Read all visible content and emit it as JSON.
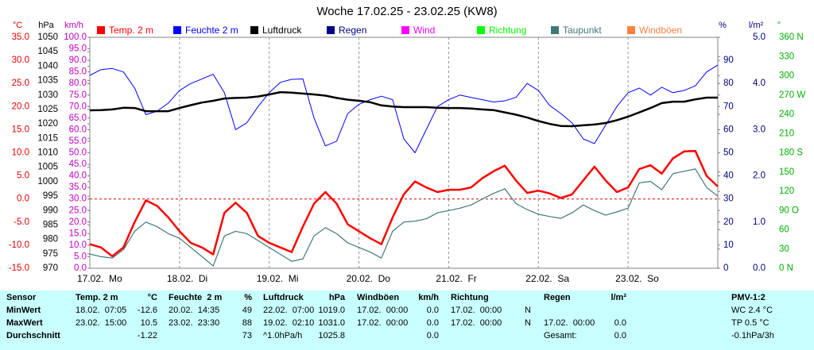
{
  "chart_data": {
    "type": "line",
    "title": "Woche 17.02.25 - 23.02.25 (KW8)",
    "x": [
      0,
      3,
      6,
      9,
      12,
      15,
      18,
      21,
      24,
      27,
      30,
      33,
      36,
      39,
      42,
      45,
      48,
      51,
      54,
      57,
      60,
      63,
      66,
      69,
      72,
      75,
      78,
      81,
      84,
      87,
      90,
      93,
      96,
      99,
      102,
      105,
      108,
      111,
      114,
      117,
      120,
      123,
      126,
      129,
      132,
      135,
      138,
      141,
      144,
      147,
      150,
      153,
      156,
      159,
      162,
      165,
      168
    ],
    "xlim": [
      0,
      168
    ],
    "xticks": [
      {
        "value": 0,
        "label": "17.02.  Mo"
      },
      {
        "value": 24,
        "label": "18.02.  Di"
      },
      {
        "value": 48,
        "label": "19.02.  Mi"
      },
      {
        "value": 72,
        "label": "20.02.  Do"
      },
      {
        "value": 96,
        "label": "21.02.  Fr"
      },
      {
        "value": 120,
        "label": "22.02.  Sa"
      },
      {
        "value": 144,
        "label": "23.02.  So"
      }
    ],
    "grid": true,
    "y_reference": 0,
    "axes": [
      {
        "title": "°C",
        "color": "#e00000",
        "lim": [
          -15,
          35
        ],
        "ticks": [
          {
            "value": 35,
            "label": "35.0"
          },
          {
            "value": 30,
            "label": "30.0"
          },
          {
            "value": 25,
            "label": "25.0"
          },
          {
            "value": 20,
            "label": "20.0"
          },
          {
            "value": 15,
            "label": "15.0"
          },
          {
            "value": 10,
            "label": "10.0"
          },
          {
            "value": 5,
            "label": "5.0"
          },
          {
            "value": 0,
            "label": "0.0"
          },
          {
            "value": -5,
            "label": "-5.0"
          },
          {
            "value": -10,
            "label": "-10.0"
          },
          {
            "value": -15,
            "label": "-15.0"
          }
        ]
      },
      {
        "title": "hPa",
        "color": "#000000",
        "lim": [
          970,
          1050
        ],
        "ticks": [
          1050,
          1045,
          1040,
          1035,
          1030,
          1025,
          1020,
          1015,
          1010,
          1005,
          1000,
          995,
          990,
          985,
          980,
          975,
          970
        ]
      },
      {
        "title": "km/h",
        "color": "#c000c0",
        "lim": [
          0,
          100
        ],
        "ticks": [
          {
            "value": 100,
            "label": "100.0"
          },
          {
            "value": 95,
            "label": "95.0"
          },
          {
            "value": 90,
            "label": "90.0"
          },
          {
            "value": 85,
            "label": "85.0"
          },
          {
            "value": 80,
            "label": "80.0"
          },
          {
            "value": 75,
            "label": "75.0"
          },
          {
            "value": 70,
            "label": "70.0"
          },
          {
            "value": 65,
            "label": "65.0"
          },
          {
            "value": 60,
            "label": "60.0"
          },
          {
            "value": 55,
            "label": "55.0"
          },
          {
            "value": 50,
            "label": "50.0"
          },
          {
            "value": 45,
            "label": "45.0"
          },
          {
            "value": 40,
            "label": "40.0"
          },
          {
            "value": 35,
            "label": "35.0"
          },
          {
            "value": 30,
            "label": "30.0"
          },
          {
            "value": 25,
            "label": "25.0"
          },
          {
            "value": 20,
            "label": "20.0"
          },
          {
            "value": 15,
            "label": "15.0"
          },
          {
            "value": 10,
            "label": "10.0"
          },
          {
            "value": 5,
            "label": "5.0"
          },
          {
            "value": 0,
            "label": "0.0"
          }
        ]
      },
      {
        "title": "%",
        "color": "#000080",
        "lim": [
          0,
          100
        ],
        "ticks": [
          90,
          80,
          70,
          60,
          50,
          40,
          30,
          20,
          10,
          0
        ]
      },
      {
        "title": "l/m²",
        "color": "#000080",
        "lim": [
          0,
          5
        ],
        "ticks": [
          {
            "value": 5,
            "label": "5.0"
          },
          {
            "value": 4,
            "label": "4.0"
          },
          {
            "value": 3,
            "label": "3.0"
          },
          {
            "value": 2,
            "label": "2.0"
          },
          {
            "value": 1,
            "label": "1.0"
          },
          {
            "value": 0,
            "label": "0.0"
          }
        ]
      },
      {
        "title": "°",
        "color": "#00b000",
        "lim": [
          0,
          360
        ],
        "ticks": [
          {
            "value": 360,
            "label": "360 N"
          },
          330,
          300,
          {
            "value": 270,
            "label": "270 W"
          },
          240,
          210,
          {
            "value": 180,
            "label": "180 S"
          },
          150,
          120,
          {
            "value": 90,
            "label": "90 O"
          },
          60,
          30,
          {
            "value": 0,
            "label": "0 N"
          }
        ]
      }
    ],
    "series": [
      {
        "name": "Temp. 2 m",
        "color": "#ff0000",
        "axis": 0,
        "width": 2.5,
        "values": [
          -9.8,
          -10.5,
          -12.4,
          -10.5,
          -5,
          -0.3,
          -1.5,
          -4,
          -7,
          -9.5,
          -10.5,
          -12,
          -3,
          -0.8,
          -3,
          -8,
          -9.5,
          -10.5,
          -11.5,
          -6,
          -1,
          1.5,
          -1,
          -5.5,
          -7,
          -8.5,
          -9.8,
          -4,
          1,
          3.8,
          2.5,
          1.5,
          2,
          2,
          2.5,
          4.5,
          6,
          7.2,
          4,
          1.3,
          1.8,
          1.2,
          0.2,
          1,
          4,
          7,
          4,
          1.5,
          2.5,
          6.5,
          7.3,
          5.5,
          8.8,
          10.3,
          10.4,
          5,
          2.7
        ]
      },
      {
        "name": "Feuchte 2 m",
        "color": "#0000ff",
        "axis": 3,
        "width": 1,
        "values": [
          83.5,
          86,
          86.5,
          85,
          78,
          66.5,
          68,
          71.5,
          77,
          80,
          82,
          84,
          76,
          60,
          63,
          70,
          76,
          80.5,
          81.8,
          82,
          65,
          53,
          55,
          67,
          71,
          73,
          74.5,
          73,
          56,
          50,
          60,
          70,
          73,
          75,
          74,
          73,
          72,
          72.5,
          74,
          80,
          77,
          70.5,
          67,
          63,
          56,
          54,
          62,
          70,
          76,
          78,
          75,
          78.4,
          76,
          77,
          79,
          85,
          88
        ]
      },
      {
        "name": "Luftdruck",
        "color": "#000000",
        "axis": 1,
        "width": 2.5,
        "values": [
          1024.7,
          1024.8,
          1025,
          1025.6,
          1025.5,
          1024.4,
          1024.4,
          1024.4,
          1025.5,
          1026.5,
          1027.4,
          1028,
          1028.8,
          1029,
          1029.1,
          1029.5,
          1030.2,
          1031,
          1030.8,
          1030.5,
          1030.2,
          1029.8,
          1029,
          1028.4,
          1028,
          1027.5,
          1026.4,
          1026,
          1025.8,
          1025.8,
          1025.8,
          1025.6,
          1025.5,
          1025.5,
          1025.3,
          1025,
          1024.8,
          1024,
          1023.2,
          1022.2,
          1021,
          1020,
          1019.3,
          1019.2,
          1019.5,
          1019.8,
          1020.3,
          1021.3,
          1022.5,
          1024,
          1025.5,
          1027.2,
          1027.7,
          1027.7,
          1028.5,
          1029.1,
          1029.1
        ]
      },
      {
        "name": "Regen",
        "color": "#000080"
      },
      {
        "name": "Wind",
        "color": "#ff00ff"
      },
      {
        "name": "Richtung",
        "color": "#00ff00"
      },
      {
        "name": "Taupunkt",
        "color": "#407878",
        "axis": 0,
        "width": 1.2,
        "values": [
          -11.9,
          -12.5,
          -12.8,
          -11,
          -7,
          -5,
          -6,
          -7.5,
          -8.5,
          -10.5,
          -12.5,
          -14.5,
          -8,
          -7,
          -7.5,
          -9,
          -10.5,
          -12,
          -13.5,
          -13,
          -8,
          -6.2,
          -7.5,
          -9.5,
          -10.5,
          -11.5,
          -12.8,
          -7,
          -5,
          -4.8,
          -4.3,
          -3,
          -2.5,
          -2,
          -1.3,
          0,
          1.2,
          2.2,
          -1,
          -2.3,
          -3.3,
          -3.8,
          -4.2,
          -3,
          -1.3,
          -2.5,
          -3.5,
          -2.8,
          -2,
          3.5,
          3.8,
          2,
          5.5,
          6,
          6.5,
          2.5,
          0.6
        ]
      },
      {
        "name": "Windböen",
        "color": "#ff8040"
      }
    ]
  },
  "table": {
    "row_labels": [
      "Sensor",
      "MinWert",
      "MaxWert",
      "Durchschnitt"
    ],
    "columns": [
      {
        "title": "Temp. 2 m",
        "unit": "°C",
        "min": [
          "18.02.  07:05",
          "-12.6"
        ],
        "max": [
          "23.02.  15:00",
          "10.5"
        ],
        "avg": [
          null,
          "-1.22"
        ]
      },
      {
        "title": "Feuchte  2 m",
        "unit": "%",
        "min": [
          "20.02.  14:35",
          "49"
        ],
        "max": [
          "23.02.  23:30",
          "88"
        ],
        "avg": [
          null,
          "73"
        ]
      },
      {
        "title": "Luftdruck",
        "unit": "hPa",
        "min": [
          "22.02.  07:00",
          "1019.0"
        ],
        "max": [
          "19.02.  02:10",
          "1031.0"
        ],
        "avg": [
          "^1.0hPa/h",
          "1025.8"
        ]
      },
      {
        "title": "Windböen",
        "unit": "km/h",
        "min": [
          "17.02.  00:00",
          "0.0"
        ],
        "max": [
          "17.02.  00:00",
          "0.0"
        ],
        "avg": [
          null,
          "0.0"
        ]
      },
      {
        "title": "Richtung",
        "min": [
          "17.02.  00:00",
          "N"
        ],
        "max": [
          "17.02.  00:00",
          "N"
        ],
        "avg": [
          null,
          null
        ]
      },
      {
        "title": "Regen",
        "unit": "l/m²",
        "min": [
          null,
          null
        ],
        "max": [
          "17.02.  00:00",
          "0.0"
        ],
        "avg": [
          "Gesamt:",
          "0.0"
        ]
      }
    ],
    "pmv": {
      "title": "PMV-1:2",
      "min": "WC 2.4 °C",
      "max": "TP 0.5 °C",
      "avg": "-0.1hPa/3h"
    }
  }
}
